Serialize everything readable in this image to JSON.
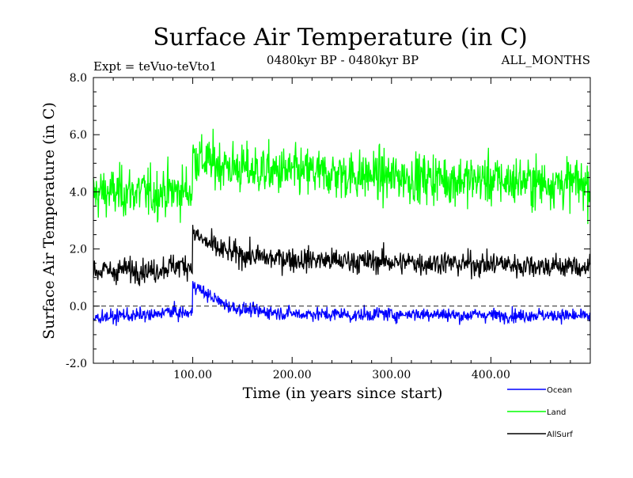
{
  "chart_data": {
    "type": "line",
    "title": "Surface Air Temperature (in C)",
    "subtitle_left": "Expt = teVuo-teVto1",
    "subtitle_center": "0480kyr BP - 0480kyr BP",
    "subtitle_right": "ALL_MONTHS",
    "xlabel": "Time (in years since start)",
    "ylabel": "Surface Air Temperature (in C)",
    "xlim": [
      0,
      500
    ],
    "ylim": [
      -2.0,
      8.0
    ],
    "x_ticks": [
      100,
      200,
      300,
      400
    ],
    "x_tick_labels": [
      "100.00",
      "200.00",
      "300.00",
      "400.00"
    ],
    "y_ticks": [
      -2,
      0,
      2,
      4,
      6,
      8
    ],
    "y_tick_labels": [
      "-2.0",
      "0.0",
      "2.0",
      "4.0",
      "6.0",
      "8.0"
    ],
    "reference_line_y": 0.0,
    "legend_position": "bottom-right, outside plot",
    "series": [
      {
        "name": "Ocean",
        "color": "#0000ff",
        "x": [
          0,
          10,
          20,
          30,
          40,
          50,
          60,
          70,
          80,
          90,
          99,
          100,
          105,
          110,
          115,
          120,
          125,
          130,
          140,
          150,
          160,
          170,
          180,
          190,
          200,
          210,
          220,
          230,
          240,
          250,
          260,
          270,
          280,
          290,
          300,
          310,
          320,
          330,
          340,
          350,
          360,
          370,
          380,
          390,
          400,
          410,
          420,
          430,
          440,
          450,
          460,
          470,
          480,
          490,
          500
        ],
        "values": [
          -0.45,
          -0.35,
          -0.4,
          -0.3,
          -0.35,
          -0.3,
          -0.35,
          -0.2,
          -0.2,
          -0.25,
          -0.25,
          0.8,
          0.65,
          0.5,
          0.4,
          0.3,
          0.2,
          0.1,
          -0.05,
          -0.1,
          -0.15,
          -0.2,
          -0.2,
          -0.25,
          -0.25,
          -0.3,
          -0.25,
          -0.3,
          -0.3,
          -0.25,
          -0.35,
          -0.3,
          -0.3,
          -0.25,
          -0.3,
          -0.3,
          -0.25,
          -0.3,
          -0.25,
          -0.3,
          -0.3,
          -0.35,
          -0.3,
          -0.3,
          -0.3,
          -0.35,
          -0.3,
          -0.35,
          -0.3,
          -0.3,
          -0.35,
          -0.3,
          -0.35,
          -0.35,
          -0.35
        ]
      },
      {
        "name": "Land",
        "color": "#00ff00",
        "x": [
          0,
          10,
          20,
          30,
          40,
          50,
          60,
          70,
          80,
          90,
          99,
          100,
          105,
          110,
          115,
          120,
          125,
          130,
          140,
          150,
          160,
          170,
          180,
          190,
          200,
          210,
          220,
          230,
          240,
          250,
          260,
          270,
          280,
          290,
          300,
          310,
          320,
          330,
          340,
          350,
          360,
          370,
          380,
          390,
          400,
          410,
          420,
          430,
          440,
          450,
          460,
          470,
          480,
          490,
          500
        ],
        "values": [
          3.9,
          4.0,
          3.95,
          4.0,
          4.0,
          4.0,
          3.9,
          4.05,
          4.0,
          4.05,
          4.0,
          5.3,
          5.2,
          5.1,
          5.05,
          5.0,
          5.0,
          4.95,
          4.85,
          4.8,
          4.75,
          4.75,
          4.7,
          4.7,
          4.7,
          4.65,
          4.7,
          4.6,
          4.65,
          4.6,
          4.6,
          4.55,
          4.6,
          4.55,
          4.5,
          4.55,
          4.5,
          4.45,
          4.5,
          4.5,
          4.4,
          4.45,
          4.4,
          4.45,
          4.4,
          4.4,
          4.35,
          4.4,
          4.35,
          4.3,
          4.35,
          4.3,
          4.3,
          4.3,
          4.25
        ]
      },
      {
        "name": "AllSurf",
        "color": "#000000",
        "x": [
          0,
          10,
          20,
          30,
          40,
          50,
          60,
          70,
          80,
          90,
          99,
          100,
          105,
          110,
          115,
          120,
          125,
          130,
          140,
          150,
          160,
          170,
          180,
          190,
          200,
          210,
          220,
          230,
          240,
          250,
          260,
          270,
          280,
          290,
          300,
          310,
          320,
          330,
          340,
          350,
          360,
          370,
          380,
          390,
          400,
          410,
          420,
          430,
          440,
          450,
          460,
          470,
          480,
          490,
          500
        ],
        "values": [
          1.2,
          1.25,
          1.2,
          1.3,
          1.25,
          1.3,
          1.2,
          1.35,
          1.4,
          1.45,
          1.4,
          2.55,
          2.45,
          2.3,
          2.2,
          2.1,
          2.0,
          1.95,
          1.85,
          1.8,
          1.75,
          1.7,
          1.65,
          1.7,
          1.65,
          1.6,
          1.65,
          1.6,
          1.6,
          1.55,
          1.6,
          1.55,
          1.55,
          1.6,
          1.55,
          1.5,
          1.55,
          1.5,
          1.5,
          1.55,
          1.5,
          1.45,
          1.5,
          1.45,
          1.45,
          1.5,
          1.45,
          1.4,
          1.45,
          1.4,
          1.4,
          1.4,
          1.4,
          1.35,
          1.35
        ]
      }
    ]
  }
}
